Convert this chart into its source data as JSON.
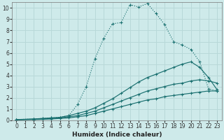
{
  "xlabel": "Humidex (Indice chaleur)",
  "xlim": [
    -0.5,
    23.5
  ],
  "ylim": [
    0,
    10.5
  ],
  "background_color": "#ceeaea",
  "grid_color": "#b8d8d8",
  "line_color": "#1a7070",
  "xtick_labels": [
    "0",
    "1",
    "2",
    "3",
    "4",
    "5",
    "6",
    "7",
    "8",
    "9",
    "10",
    "11",
    "12",
    "13",
    "14",
    "15",
    "16",
    "17",
    "18",
    "19",
    "20",
    "21",
    "22",
    "23"
  ],
  "xtick_vals": [
    0,
    1,
    2,
    3,
    4,
    5,
    6,
    7,
    8,
    9,
    10,
    11,
    12,
    13,
    14,
    15,
    16,
    17,
    18,
    19,
    20,
    21,
    22,
    23
  ],
  "ytick_vals": [
    0,
    1,
    2,
    3,
    4,
    5,
    6,
    7,
    8,
    9,
    10
  ],
  "lines": [
    {
      "x": [
        0,
        2,
        3,
        4,
        5,
        6,
        7,
        8,
        9,
        10,
        11,
        12,
        13,
        14,
        15,
        16,
        17,
        18,
        19,
        20,
        21,
        22,
        23
      ],
      "y": [
        0.05,
        0.1,
        0.15,
        0.2,
        0.25,
        0.4,
        1.4,
        3.0,
        5.5,
        7.3,
        8.6,
        8.7,
        10.3,
        10.1,
        10.4,
        9.5,
        8.5,
        7.0,
        6.7,
        6.3,
        5.2,
        2.8,
        2.6
      ],
      "linestyle": ":"
    },
    {
      "x": [
        0,
        2,
        3,
        4,
        5,
        6,
        7,
        8,
        9,
        10,
        11,
        12,
        13,
        14,
        15,
        16,
        17,
        18,
        19,
        20,
        21,
        22,
        23
      ],
      "y": [
        0.05,
        0.1,
        0.15,
        0.2,
        0.25,
        0.4,
        0.6,
        0.8,
        1.1,
        1.5,
        1.9,
        2.4,
        2.9,
        3.4,
        3.8,
        4.1,
        4.4,
        4.7,
        5.0,
        5.2,
        4.7,
        3.8,
        2.7
      ],
      "linestyle": "-"
    },
    {
      "x": [
        0,
        2,
        3,
        4,
        5,
        6,
        7,
        8,
        9,
        10,
        11,
        12,
        13,
        14,
        15,
        16,
        17,
        18,
        19,
        20,
        21,
        22,
        23
      ],
      "y": [
        0.05,
        0.08,
        0.1,
        0.15,
        0.2,
        0.3,
        0.4,
        0.6,
        0.8,
        1.1,
        1.4,
        1.7,
        2.0,
        2.3,
        2.6,
        2.8,
        3.0,
        3.2,
        3.3,
        3.5,
        3.6,
        3.5,
        3.3
      ],
      "linestyle": "-"
    },
    {
      "x": [
        0,
        2,
        3,
        4,
        5,
        6,
        7,
        8,
        9,
        10,
        11,
        12,
        13,
        14,
        15,
        16,
        17,
        18,
        19,
        20,
        21,
        22,
        23
      ],
      "y": [
        0.02,
        0.05,
        0.07,
        0.1,
        0.15,
        0.2,
        0.3,
        0.4,
        0.6,
        0.8,
        1.0,
        1.2,
        1.4,
        1.6,
        1.8,
        1.9,
        2.1,
        2.2,
        2.3,
        2.4,
        2.5,
        2.6,
        2.6
      ],
      "linestyle": "-"
    }
  ],
  "xlabel_fontsize": 6.5,
  "tick_fontsize": 5.5
}
